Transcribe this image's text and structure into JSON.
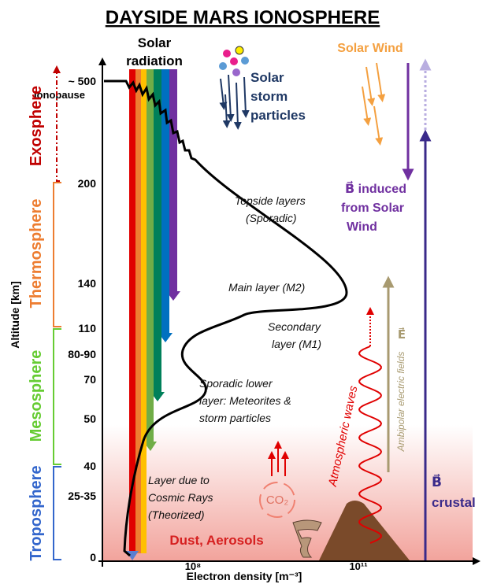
{
  "title": "DAYSIDE MARS IONOSPHERE",
  "y_axis": {
    "label": "Altitude [km]",
    "ticks": [
      "~ 500",
      "200",
      "140",
      "110",
      "80-90",
      "70",
      "50",
      "40",
      "25-35",
      "0"
    ],
    "ionopause": "Ionopause"
  },
  "x_axis": {
    "label": "Electron density [m⁻³]",
    "ticks": [
      "10⁸",
      "10¹¹"
    ]
  },
  "regions": [
    "Exosphere",
    "Thermosphere",
    "Mesosphere",
    "Troposphere"
  ],
  "solar_radiation": [
    "Solar",
    "radiation"
  ],
  "solar_storm": [
    "Solar",
    "storm",
    "particles"
  ],
  "solar_wind": "Solar Wind",
  "b_induced": [
    "B⃗ induced",
    "from Solar",
    "Wind"
  ],
  "b_crustal": [
    "B⃗",
    "crustal"
  ],
  "layers": {
    "topside": [
      "Topside layers",
      "(Sporadic)"
    ],
    "main": "Main layer (M2)",
    "secondary": [
      "Secondary",
      "layer (M1)"
    ],
    "sporadic_lower": [
      "Sporadic lower",
      "layer: Meteorites &",
      "storm particles"
    ],
    "cosmic": [
      "Layer due to",
      "Cosmic Rays",
      "(Theorized)"
    ]
  },
  "dust": "Dust, Aerosols",
  "co2": "CO₂",
  "atmospheric_waves": "Atmospheric waves",
  "ambipolar": "Ambipolar electric fields",
  "e_field": "E⃗"
}
